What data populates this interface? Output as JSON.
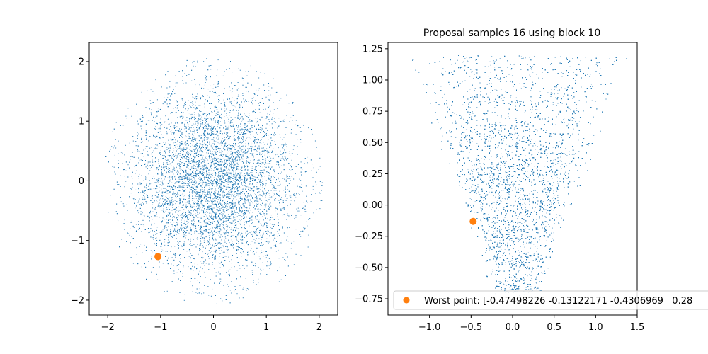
{
  "chart_data": [
    {
      "type": "scatter",
      "title": "",
      "xlabel": "",
      "ylabel": "",
      "xlim": [
        -2.35,
        2.35
      ],
      "ylim": [
        -2.25,
        2.32
      ],
      "xticks": [
        -2,
        -1,
        0,
        1,
        2
      ],
      "yticks": [
        -2,
        -1,
        0,
        1,
        2
      ],
      "xtick_labels": [
        "−2",
        "−1",
        "0",
        "1",
        "2"
      ],
      "ytick_labels": [
        "−2",
        "−1",
        "0",
        "1",
        "2"
      ],
      "grid": false,
      "samples": {
        "distribution": "standard-normal-2d",
        "count": 9000,
        "clip_radius": 2.1,
        "color": "#1f77b4"
      },
      "highlight": {
        "x": -1.05,
        "y": -1.27,
        "color": "#ff7f0e"
      }
    },
    {
      "type": "scatter",
      "title": "Proposal samples 16 using block 10",
      "xlabel": "",
      "ylabel": "",
      "xlim": [
        -1.5,
        1.5
      ],
      "ylim": [
        -0.88,
        1.3
      ],
      "xticks": [
        -1.0,
        -0.5,
        0.0,
        0.5,
        1.0,
        1.5
      ],
      "yticks": [
        -0.75,
        -0.5,
        -0.25,
        0.0,
        0.25,
        0.5,
        0.75,
        1.0,
        1.25
      ],
      "xtick_labels": [
        "−1.0",
        "−0.5",
        "0.0",
        "0.5",
        "1.0",
        "1.5"
      ],
      "ytick_labels": [
        "−0.75",
        "−0.50",
        "−0.25",
        "0.00",
        "0.25",
        "0.50",
        "0.75",
        "1.00",
        "1.25"
      ],
      "grid": false,
      "samples": {
        "distribution": "v-shaped",
        "count": 9000,
        "color": "#1f77b4"
      },
      "highlight": {
        "x": -0.475,
        "y": -0.131,
        "color": "#ff7f0e"
      },
      "legend": {
        "placement": "lower-right",
        "entries": [
          {
            "label": "Worst point: [-0.47498226 -0.13122171 -0.4306969   0.28",
            "color": "#ff7f0e",
            "marker": "circle"
          }
        ]
      }
    }
  ]
}
